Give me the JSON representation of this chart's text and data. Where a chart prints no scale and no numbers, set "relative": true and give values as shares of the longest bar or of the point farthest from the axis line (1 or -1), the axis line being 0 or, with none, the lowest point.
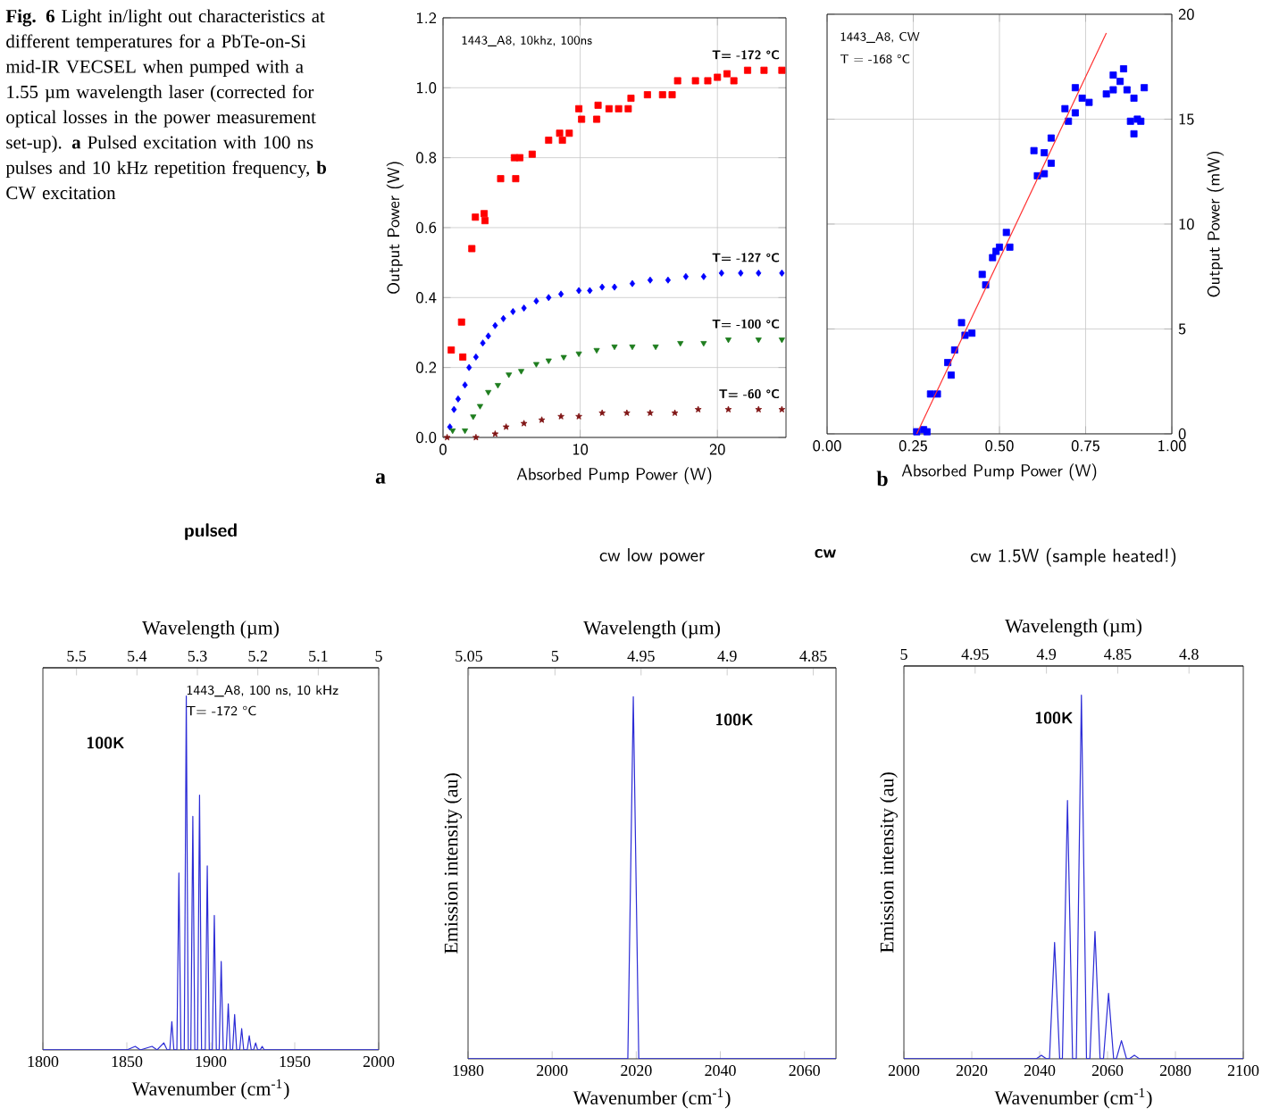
{
  "chart_data": [
    {
      "type": "scatter",
      "xlabel": "Absorbed Pump Power (W)",
      "ylabel": "Output Power (W)",
      "xlim": [
        0,
        25
      ],
      "xticks": [
        0,
        10,
        20
      ],
      "ylim": [
        0,
        1.2
      ],
      "yticks": [
        {
          "value": 0,
          "label": "0.0"
        },
        0.2,
        0.4,
        0.6,
        0.8,
        {
          "value": 1,
          "label": "1.0"
        },
        1.2
      ],
      "grid": true,
      "annotations": [
        "**Fig. 6** Light in/light out characteristics at different temperatures for a PbTe-on-Si mid-IR VECSEL when pumped with a 1.55 µm wavelength laser (corrected for optical losses in the power measurement set-up). **a** Pulsed excitation with 100 ns pulses and 10 kHz repetition frequency, **b** CW excitation",
        "1443_A8, 10khz, 100ns",
        "a"
      ],
      "series": [
        {
          "name": "T= -172 °C",
          "color": "#ff0000",
          "marker": "square",
          "x": [
            0.6,
            1.35,
            1.44,
            2.1,
            2.36,
            3.06,
            3.0,
            4.2,
            5.3,
            5.2,
            5.6,
            6.5,
            7.7,
            8.5,
            8.7,
            9.2,
            9.9,
            10.1,
            11.2,
            11.3,
            12.1,
            12.8,
            13.7,
            13.5,
            14.9,
            16.0,
            16.7,
            17.1,
            18.4,
            19.3,
            20.0,
            20.7,
            21.2,
            22.2,
            23.4,
            24.7
          ],
          "values": [
            0.25,
            0.33,
            0.23,
            0.54,
            0.63,
            0.62,
            0.64,
            0.74,
            0.74,
            0.8,
            0.8,
            0.81,
            0.85,
            0.87,
            0.85,
            0.87,
            0.94,
            0.91,
            0.91,
            0.95,
            0.94,
            0.94,
            0.97,
            0.94,
            0.98,
            0.98,
            0.98,
            1.02,
            1.02,
            1.02,
            1.03,
            1.04,
            1.02,
            1.05,
            1.05,
            1.05
          ]
        },
        {
          "name": "T= -127 °C",
          "color": "#0000ff",
          "marker": "diamond",
          "x": [
            0.5,
            0.8,
            1.1,
            1.6,
            1.9,
            2.4,
            2.9,
            3.3,
            3.8,
            4.4,
            5.1,
            5.9,
            6.8,
            7.7,
            8.6,
            9.9,
            10.7,
            11.6,
            12.5,
            13.8,
            15.1,
            16.4,
            17.7,
            19.0,
            20.3,
            21.7,
            23.0,
            24.7
          ],
          "values": [
            0.03,
            0.08,
            0.11,
            0.15,
            0.2,
            0.23,
            0.27,
            0.29,
            0.32,
            0.34,
            0.36,
            0.37,
            0.39,
            0.4,
            0.41,
            0.42,
            0.42,
            0.43,
            0.43,
            0.44,
            0.45,
            0.45,
            0.46,
            0.46,
            0.47,
            0.47,
            0.47,
            0.47
          ]
        },
        {
          "name": "T= -100 °C",
          "color": "#1e7d1e",
          "marker": "triangle",
          "x": [
            0.7,
            1.6,
            2.2,
            2.7,
            3.3,
            4.0,
            4.8,
            5.7,
            6.8,
            7.7,
            8.8,
            9.9,
            11.2,
            12.5,
            13.8,
            15.5,
            17.3,
            19.0,
            20.8,
            23.0,
            24.7
          ],
          "values": [
            0.02,
            0.02,
            0.06,
            0.09,
            0.13,
            0.15,
            0.18,
            0.19,
            0.21,
            0.22,
            0.23,
            0.24,
            0.25,
            0.26,
            0.26,
            0.26,
            0.27,
            0.27,
            0.28,
            0.28,
            0.28
          ]
        },
        {
          "name": "T= -60 °C",
          "color": "#801515",
          "marker": "star",
          "x": [
            0.3,
            2.4,
            3.8,
            4.6,
            5.9,
            7.2,
            8.6,
            9.9,
            11.6,
            13.4,
            15.1,
            16.9,
            18.6,
            20.8,
            23.0,
            24.7
          ],
          "values": [
            0.0,
            0.0,
            0.01,
            0.03,
            0.04,
            0.05,
            0.06,
            0.06,
            0.07,
            0.07,
            0.07,
            0.07,
            0.08,
            0.08,
            0.08,
            0.08
          ]
        }
      ]
    },
    {
      "type": "scatter",
      "xlabel": "Absorbed Pump Power (W)",
      "ylabel": "Output Power (mW)",
      "xlim": [
        0,
        1
      ],
      "xticks": [
        {
          "value": 0,
          "label": "0.00"
        },
        0.25,
        {
          "value": 0.5,
          "label": "0.50"
        },
        0.75,
        {
          "value": 1,
          "label": "1.00"
        }
      ],
      "ylim": [
        0,
        20
      ],
      "yticks": [
        0,
        5,
        10,
        15,
        20
      ],
      "grid": true,
      "annotations": [
        "1443_A8, CW",
        "T = -168 °C",
        "b"
      ],
      "series": [
        {
          "color": "#0000ff",
          "marker": "square",
          "x": [
            0.26,
            0.28,
            0.29,
            0.3,
            0.32,
            0.35,
            0.36,
            0.37,
            0.39,
            0.4,
            0.42,
            0.45,
            0.46,
            0.48,
            0.49,
            0.5,
            0.52,
            0.53,
            0.6,
            0.61,
            0.62,
            0.63,
            0.63,
            0.65,
            0.65,
            0.69,
            0.7,
            0.72,
            0.72,
            0.74,
            0.76,
            0.81,
            0.83,
            0.83,
            0.85,
            0.86,
            0.87,
            0.89,
            0.92,
            0.88,
            0.9,
            0.91,
            0.89
          ],
          "values": [
            0.1,
            0.2,
            0.1,
            1.9,
            1.9,
            3.4,
            2.8,
            4.0,
            5.3,
            4.7,
            4.8,
            7.6,
            7.1,
            8.4,
            8.7,
            8.9,
            9.6,
            8.9,
            13.5,
            12.3,
            null,
            12.4,
            13.4,
            14.1,
            12.9,
            15.5,
            14.9,
            15.3,
            16.5,
            16.0,
            15.8,
            16.2,
            17.1,
            16.4,
            16.8,
            17.4,
            16.4,
            16.0,
            16.5,
            14.9,
            15.0,
            14.9,
            14.3
          ]
        },
        {
          "type": "line",
          "color": "#ff3030",
          "x": [
            0.26,
            0.81
          ],
          "values": [
            0,
            19.1
          ]
        }
      ]
    },
    {
      "type": "line",
      "title": "pulsed",
      "xlabel": "Wavenumber (cm$^{-1}$)",
      "x2label": "Wavelength (µm)",
      "xlim": [
        1800,
        2000
      ],
      "xticks": [
        1800,
        1850,
        1900,
        1950,
        2000
      ],
      "x2lim": [
        5.5556,
        5.0
      ],
      "x2ticks": [
        5.5,
        5.4,
        5.3,
        5.2,
        5.1,
        5
      ],
      "relative": true,
      "tick_labels": "x",
      "color": "#2b2bd6",
      "annotations": [
        "1443_A8, 100 ns, 10 kHz",
        "T= -172 °C",
        "100K"
      ],
      "x": [
        1800,
        1850,
        1855,
        1858,
        1865,
        1868,
        1872,
        1874,
        1875.6,
        1876.8,
        1878.0,
        1879.8,
        1881.0,
        1882.2,
        1884.2,
        1885.4,
        1886.6,
        1888.1,
        1889.3,
        1890.5,
        1892.1,
        1893.3,
        1894.5,
        1896.7,
        1897.9,
        1899.1,
        1900.9,
        1902.1,
        1903.3,
        1905.0,
        1906.2,
        1907.4,
        1909.2,
        1910.4,
        1911.6,
        1913.0,
        1914.2,
        1915.4,
        1917.2,
        1918.4,
        1919.6,
        1921.7,
        1922.9,
        1924.1,
        1925.5,
        1926.7,
        1927.9,
        1929.4,
        1930.6,
        1931.8,
        2000
      ],
      "values": [
        0,
        0,
        0.01,
        0,
        0.01,
        0,
        0.02,
        0,
        0,
        0.08,
        0,
        0,
        0.5,
        0,
        0,
        1,
        0,
        0,
        0.66,
        0,
        0,
        0.72,
        0,
        0,
        0.52,
        0,
        0,
        0.38,
        0,
        0,
        0.25,
        0,
        0,
        0.13,
        0,
        0,
        0.1,
        0,
        0,
        0.06,
        0,
        0,
        0.04,
        0,
        0,
        0.02,
        0,
        0,
        0.01,
        0,
        0
      ]
    },
    {
      "type": "line",
      "title": "cw low power",
      "xlabel": "Wavenumber (cm$^{-1}$)",
      "ylabel": "Emission intensity (au)",
      "x2label": "Wavelength (µm)",
      "xlim": [
        1980,
        2067.5
      ],
      "xticks": [
        1980,
        2000,
        2020,
        2040,
        2060
      ],
      "x2lim": [
        5.0505,
        4.8368
      ],
      "x2ticks": [
        5.05,
        5,
        4.95,
        4.9,
        4.85
      ],
      "relative": true,
      "tick_labels": "x",
      "color": "#2b2bd6",
      "annotations": [
        "100K",
        "cw"
      ],
      "x": [
        1980,
        2018,
        2019.3,
        2020.6,
        2067.5
      ],
      "values": [
        0,
        0,
        1,
        0,
        0
      ]
    },
    {
      "type": "line",
      "title": "cw 1.5W  (sample heated!)",
      "xlabel": "Wavenumber (cm$^{-1}$)",
      "ylabel": "Emission intensity (au)",
      "x2label": "Wavelength (µm)",
      "xlim": [
        2000,
        2100
      ],
      "xticks": [
        2000,
        2020,
        2040,
        2060,
        2080,
        2100
      ],
      "x2lim": [
        5.0,
        4.7619
      ],
      "x2ticks": [
        5,
        4.95,
        4.9,
        4.85,
        4.8
      ],
      "relative": true,
      "tick_labels": "x",
      "color": "#2b2bd6",
      "annotations": [
        "100K"
      ],
      "x": [
        2000,
        2039,
        2040.5,
        2042,
        2042.9,
        2044.4,
        2045.9,
        2046.7,
        2048.2,
        2049.7,
        2050.8,
        2052.3,
        2053.8,
        2054.8,
        2056.3,
        2057.8,
        2058.8,
        2060.3,
        2061.8,
        2062.6,
        2064.1,
        2065.6,
        2066.4,
        2067.9,
        2069.4,
        2100
      ],
      "values": [
        0,
        0,
        0.01,
        0,
        0,
        0.32,
        0,
        0,
        0.71,
        0,
        0,
        1,
        0,
        0,
        0.35,
        0,
        0,
        0.18,
        0,
        0,
        0.05,
        0,
        0,
        0.01,
        0,
        0
      ]
    }
  ]
}
